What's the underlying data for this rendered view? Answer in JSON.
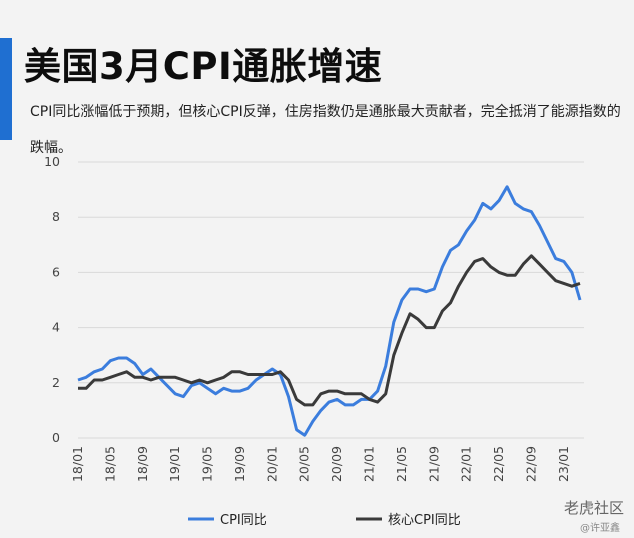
{
  "title": "美国3月CPI通胀增速",
  "subtitle": "CPI同比涨幅低于预期，但核心CPI反弹，住房指数仍是通胀最大贡献者，完全抵消了能源指数的跌幅。",
  "watermark": "老虎社区",
  "watermark_sub": "@许亚鑫",
  "colors": {
    "cpi": "#3b7ddd",
    "core": "#3a3a3a",
    "accent": "#1f6fd1",
    "grid": "#d9d9d9"
  },
  "chart_data": {
    "type": "line",
    "title": "美国3月CPI通胀增速",
    "xlabel": "",
    "ylabel": "",
    "ylim": [
      0,
      10
    ],
    "yticks": [
      0,
      2,
      4,
      6,
      8,
      10
    ],
    "x": [
      "18/01",
      "18/02",
      "18/03",
      "18/04",
      "18/05",
      "18/06",
      "18/07",
      "18/08",
      "18/09",
      "18/10",
      "18/11",
      "18/12",
      "19/01",
      "19/02",
      "19/03",
      "19/04",
      "19/05",
      "19/06",
      "19/07",
      "19/08",
      "19/09",
      "19/10",
      "19/11",
      "19/12",
      "20/01",
      "20/02",
      "20/03",
      "20/04",
      "20/05",
      "20/06",
      "20/07",
      "20/08",
      "20/09",
      "20/10",
      "20/11",
      "20/12",
      "21/01",
      "21/02",
      "21/03",
      "21/04",
      "21/05",
      "21/06",
      "21/07",
      "21/08",
      "21/09",
      "21/10",
      "21/11",
      "21/12",
      "22/01",
      "22/02",
      "22/03",
      "22/04",
      "22/05",
      "22/06",
      "22/07",
      "22/08",
      "22/09",
      "22/10",
      "22/11",
      "22/12",
      "23/01",
      "23/02",
      "23/03"
    ],
    "xtick_labels": [
      "18/01",
      "18/05",
      "18/09",
      "19/01",
      "19/05",
      "19/09",
      "20/01",
      "20/05",
      "20/09",
      "21/01",
      "21/05",
      "21/09",
      "22/01",
      "22/05",
      "22/09",
      "23/01"
    ],
    "grid": true,
    "legend_position": "bottom",
    "series": [
      {
        "name": "CPI同比",
        "values": [
          2.1,
          2.2,
          2.4,
          2.5,
          2.8,
          2.9,
          2.9,
          2.7,
          2.3,
          2.5,
          2.2,
          1.9,
          1.6,
          1.5,
          1.9,
          2.0,
          1.8,
          1.6,
          1.8,
          1.7,
          1.7,
          1.8,
          2.1,
          2.3,
          2.5,
          2.3,
          1.5,
          0.3,
          0.1,
          0.6,
          1.0,
          1.3,
          1.4,
          1.2,
          1.2,
          1.4,
          1.4,
          1.7,
          2.6,
          4.2,
          5.0,
          5.4,
          5.4,
          5.3,
          5.4,
          6.2,
          6.8,
          7.0,
          7.5,
          7.9,
          8.5,
          8.3,
          8.6,
          9.1,
          8.5,
          8.3,
          8.2,
          7.7,
          7.1,
          6.5,
          6.4,
          6.0,
          5.0
        ]
      },
      {
        "name": "核心CPI同比",
        "values": [
          1.8,
          1.8,
          2.1,
          2.1,
          2.2,
          2.3,
          2.4,
          2.2,
          2.2,
          2.1,
          2.2,
          2.2,
          2.2,
          2.1,
          2.0,
          2.1,
          2.0,
          2.1,
          2.2,
          2.4,
          2.4,
          2.3,
          2.3,
          2.3,
          2.3,
          2.4,
          2.1,
          1.4,
          1.2,
          1.2,
          1.6,
          1.7,
          1.7,
          1.6,
          1.6,
          1.6,
          1.4,
          1.3,
          1.6,
          3.0,
          3.8,
          4.5,
          4.3,
          4.0,
          4.0,
          4.6,
          4.9,
          5.5,
          6.0,
          6.4,
          6.5,
          6.2,
          6.0,
          5.9,
          5.9,
          6.3,
          6.6,
          6.3,
          6.0,
          5.7,
          5.6,
          5.5,
          5.6
        ]
      }
    ]
  }
}
